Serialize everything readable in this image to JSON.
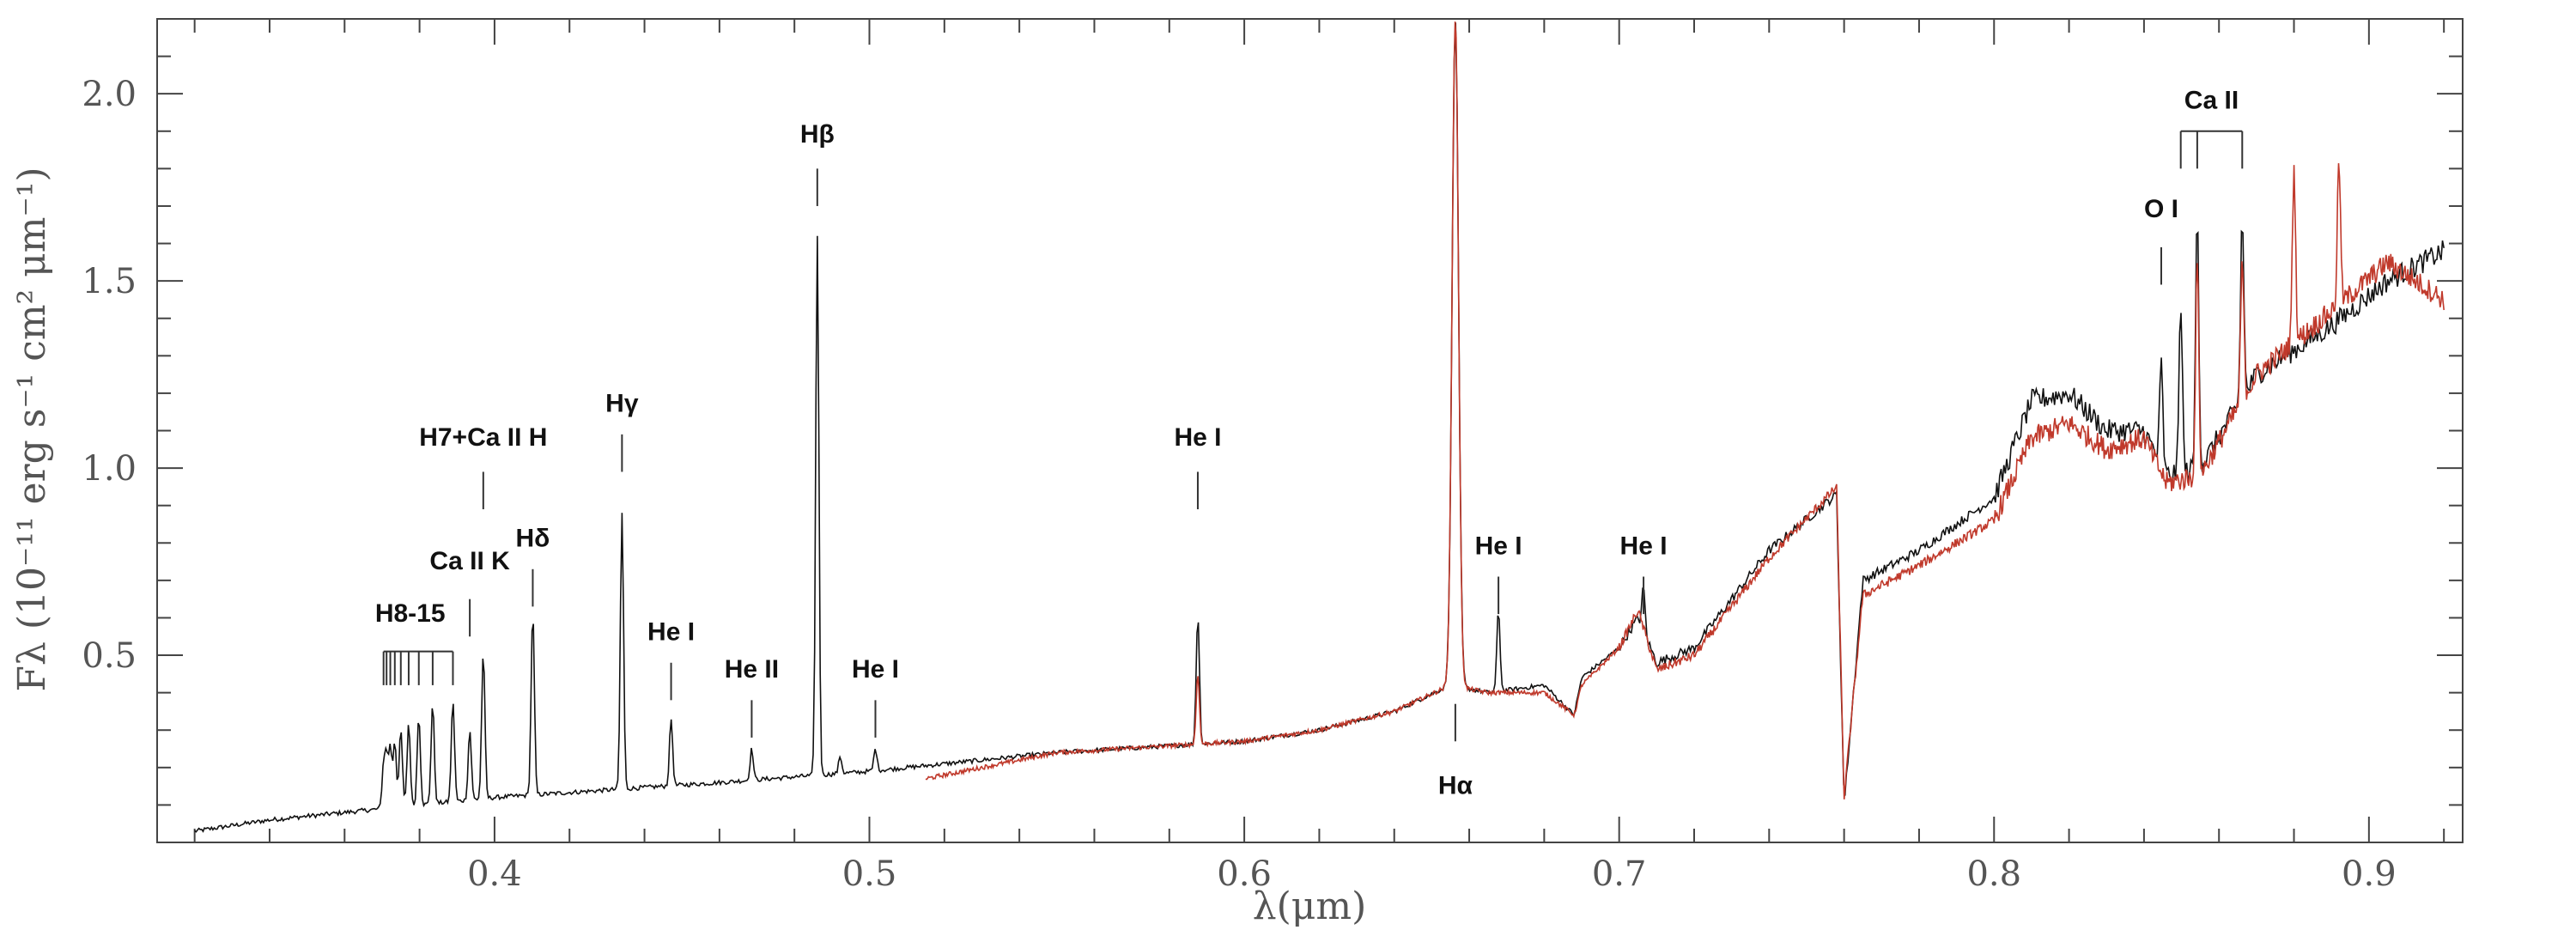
{
  "chart_data": {
    "type": "line",
    "xlabel": "λ(μm)",
    "ylabel": "Fλ (10⁻¹¹ erg s⁻¹ cm² μm⁻¹)",
    "xlim": [
      0.31,
      0.925
    ],
    "ylim": [
      0.0,
      2.2
    ],
    "x_ticks": [
      0.4,
      0.5,
      0.6,
      0.7,
      0.8,
      0.9
    ],
    "x_tick_labels": [
      "0.4",
      "0.5",
      "0.6",
      "0.7",
      "0.8",
      "0.9"
    ],
    "y_ticks": [
      0.5,
      1.0,
      1.5,
      2.0
    ],
    "y_tick_labels": [
      "0.5",
      "1.0",
      "1.5",
      "2.0"
    ],
    "colors": {
      "series_1": "#111111",
      "series_2": "#c0392b"
    },
    "series": [
      {
        "color": "#111111",
        "continuum": [
          [
            0.32,
            0.03
          ],
          [
            0.34,
            0.06
          ],
          [
            0.36,
            0.08
          ],
          [
            0.38,
            0.1
          ],
          [
            0.4,
            0.12
          ],
          [
            0.43,
            0.14
          ],
          [
            0.46,
            0.16
          ],
          [
            0.5,
            0.19
          ],
          [
            0.55,
            0.24
          ],
          [
            0.6,
            0.27
          ],
          [
            0.62,
            0.3
          ],
          [
            0.64,
            0.35
          ],
          [
            0.655,
            0.42
          ],
          [
            0.665,
            0.4
          ],
          [
            0.68,
            0.42
          ],
          [
            0.69,
            0.44
          ],
          [
            0.688,
            0.34
          ],
          [
            0.7,
            0.52
          ],
          [
            0.705,
            0.6
          ],
          [
            0.71,
            0.48
          ],
          [
            0.72,
            0.52
          ],
          [
            0.74,
            0.78
          ],
          [
            0.758,
            0.93
          ],
          [
            0.76,
            0.1
          ],
          [
            0.765,
            0.7
          ],
          [
            0.78,
            0.78
          ],
          [
            0.8,
            0.92
          ],
          [
            0.81,
            1.18
          ],
          [
            0.82,
            1.2
          ],
          [
            0.83,
            1.1
          ],
          [
            0.84,
            1.1
          ],
          [
            0.846,
            0.98
          ],
          [
            0.855,
            1.0
          ],
          [
            0.87,
            1.25
          ],
          [
            0.89,
            1.38
          ],
          [
            0.905,
            1.5
          ],
          [
            0.92,
            1.58
          ]
        ],
        "lines": [
          [
            0.3704,
            0.2
          ],
          [
            0.3712,
            0.22
          ],
          [
            0.3722,
            0.25
          ],
          [
            0.3734,
            0.27
          ],
          [
            0.375,
            0.3
          ],
          [
            0.3771,
            0.32
          ],
          [
            0.3798,
            0.34
          ],
          [
            0.3835,
            0.37
          ],
          [
            0.3889,
            0.38
          ],
          [
            0.3934,
            0.3
          ],
          [
            0.397,
            0.51
          ],
          [
            0.4102,
            0.62
          ],
          [
            0.434,
            0.88
          ],
          [
            0.4471,
            0.33
          ],
          [
            0.4686,
            0.25
          ],
          [
            0.4861,
            1.62
          ],
          [
            0.4922,
            0.23
          ],
          [
            0.5016,
            0.25
          ],
          [
            0.5876,
            0.61
          ],
          [
            0.6563,
            2.2
          ],
          [
            0.6678,
            0.62
          ],
          [
            0.7065,
            0.68
          ],
          [
            0.8446,
            1.28
          ],
          [
            0.8498,
            1.45
          ],
          [
            0.8542,
            1.7
          ],
          [
            0.8662,
            1.68
          ]
        ]
      },
      {
        "color": "#c0392b",
        "continuum": [
          [
            0.515,
            0.17
          ],
          [
            0.55,
            0.24
          ],
          [
            0.6,
            0.27
          ],
          [
            0.62,
            0.3
          ],
          [
            0.64,
            0.35
          ],
          [
            0.655,
            0.42
          ],
          [
            0.665,
            0.4
          ],
          [
            0.68,
            0.4
          ],
          [
            0.69,
            0.42
          ],
          [
            0.688,
            0.34
          ],
          [
            0.7,
            0.52
          ],
          [
            0.705,
            0.62
          ],
          [
            0.71,
            0.46
          ],
          [
            0.72,
            0.5
          ],
          [
            0.74,
            0.76
          ],
          [
            0.758,
            0.95
          ],
          [
            0.76,
            0.12
          ],
          [
            0.765,
            0.66
          ],
          [
            0.78,
            0.74
          ],
          [
            0.8,
            0.86
          ],
          [
            0.81,
            1.08
          ],
          [
            0.82,
            1.12
          ],
          [
            0.83,
            1.05
          ],
          [
            0.84,
            1.08
          ],
          [
            0.846,
            0.96
          ],
          [
            0.855,
            0.98
          ],
          [
            0.87,
            1.25
          ],
          [
            0.89,
            1.42
          ],
          [
            0.905,
            1.55
          ],
          [
            0.92,
            1.45
          ]
        ],
        "lines": [
          [
            0.5876,
            0.45
          ],
          [
            0.6563,
            2.2
          ],
          [
            0.8542,
            1.55
          ],
          [
            0.8662,
            1.55
          ],
          [
            0.88,
            1.8
          ],
          [
            0.892,
            1.82
          ]
        ]
      }
    ],
    "annotations": [
      {
        "text": "H8-15",
        "x": 0.3775,
        "y": 0.59,
        "type": "bracket",
        "xs": [
          0.3704,
          0.3712,
          0.3722,
          0.3734,
          0.375,
          0.3771,
          0.3798,
          0.3835,
          0.3889
        ],
        "y_top": 0.51,
        "y_bottom": 0.42
      },
      {
        "text": "Ca II K",
        "x": 0.3934,
        "y": 0.73,
        "y_top": 0.65,
        "y_bottom": 0.55
      },
      {
        "text": "H7+Ca II H",
        "x": 0.397,
        "y": 1.06,
        "y_top": 0.99,
        "y_bottom": 0.89
      },
      {
        "text": "Hδ",
        "x": 0.4102,
        "y": 0.79,
        "y_top": 0.73,
        "y_bottom": 0.63
      },
      {
        "text": "Hγ",
        "x": 0.434,
        "y": 1.15,
        "y_top": 1.09,
        "y_bottom": 0.99
      },
      {
        "text": "He I",
        "x": 0.4471,
        "y": 0.54,
        "y_top": 0.48,
        "y_bottom": 0.38
      },
      {
        "text": "He II",
        "x": 0.4686,
        "y": 0.44,
        "y_top": 0.38,
        "y_bottom": 0.28
      },
      {
        "text": "Hβ",
        "x": 0.4861,
        "y": 1.87,
        "y_top": 1.8,
        "y_bottom": 1.7
      },
      {
        "text": "He I",
        "x": 0.5016,
        "y": 0.44,
        "y_top": 0.38,
        "y_bottom": 0.28
      },
      {
        "text": "He I",
        "x": 0.5876,
        "y": 1.06,
        "y_top": 0.99,
        "y_bottom": 0.89
      },
      {
        "text": "Hα",
        "x": 0.6563,
        "y": 0.13,
        "y_top": 0.37,
        "y_bottom": 0.27
      },
      {
        "text": "He I",
        "x": 0.6678,
        "y": 0.77,
        "y_top": 0.71,
        "y_bottom": 0.61
      },
      {
        "text": "He I",
        "x": 0.7065,
        "y": 0.77,
        "y_top": 0.71,
        "y_bottom": 0.61
      },
      {
        "text": "O I",
        "x": 0.8446,
        "y": 1.67,
        "y_top": 1.59,
        "y_bottom": 1.49
      },
      {
        "text": "Ca II",
        "x": 0.858,
        "y": 1.96,
        "type": "bracket",
        "xs": [
          0.8498,
          0.8542,
          0.8662
        ],
        "y_top": 1.9,
        "y_bottom": 1.8
      }
    ]
  }
}
